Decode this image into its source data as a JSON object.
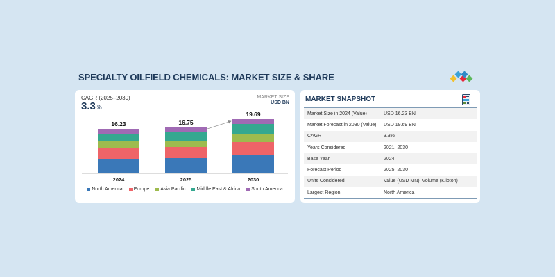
{
  "page": {
    "title": "SPECIALTY OILFIELD CHEMICALS: MARKET SIZE & SHARE",
    "background": "#d5e5f2"
  },
  "logo": {
    "icon": "brand-diamonds-logo",
    "colors": [
      "#f2c12e",
      "#3aa2d8",
      "#e8283c",
      "#2f8bc8",
      "#5cb85c"
    ]
  },
  "chart_card": {
    "cagr_label": "CAGR (2025–2030)",
    "cagr_value": "3.3",
    "cagr_unit": "%",
    "market_size_label": "MARKET SIZE",
    "market_size_unit": "USD BN"
  },
  "chart_data": {
    "type": "bar",
    "stacked": true,
    "title": "",
    "xlabel": "",
    "ylabel": "Market Size (USD BN)",
    "categories": [
      "2024",
      "2025",
      "2030"
    ],
    "totals": [
      16.23,
      16.75,
      19.69
    ],
    "total_labels": [
      "16.23",
      "16.75",
      "19.69"
    ],
    "series": [
      {
        "name": "North America",
        "color": "#3a78b8",
        "values": [
          5.38,
          5.55,
          6.53
        ]
      },
      {
        "name": "Europe",
        "color": "#ee6468",
        "values": [
          3.98,
          4.11,
          4.83
        ]
      },
      {
        "name": "Asia Pacific",
        "color": "#9ebb4e",
        "values": [
          2.3,
          2.38,
          2.92
        ]
      },
      {
        "name": "Middle East & Africa",
        "color": "#35a890",
        "values": [
          2.89,
          2.98,
          3.78
        ]
      },
      {
        "name": "South America",
        "color": "#a06ab4",
        "values": [
          1.68,
          1.73,
          1.63
        ]
      }
    ],
    "annotations": [
      "Growth arrow from 2025 bar to 2030 bar"
    ],
    "grid": false,
    "legend_position": "bottom"
  },
  "snapshot": {
    "title": "MARKET SNAPSHOT",
    "icon": "report-document-icon",
    "rows": [
      {
        "key": "Market Size in 2024 (Value)",
        "value": "USD 16.23 BN"
      },
      {
        "key": "Market Forecast in 2030 (Value)",
        "value": "USD 19.69 BN"
      },
      {
        "key": "CAGR",
        "value": "3.3%"
      },
      {
        "key": "Years Considered",
        "value": "2021–2030"
      },
      {
        "key": "Base Year",
        "value": "2024"
      },
      {
        "key": "Forecast Period",
        "value": "2025–2030"
      },
      {
        "key": "Units Considered",
        "value": "Value (USD MN), Volume (Kiloton)"
      },
      {
        "key": "Largest Region",
        "value": "North America"
      }
    ]
  }
}
